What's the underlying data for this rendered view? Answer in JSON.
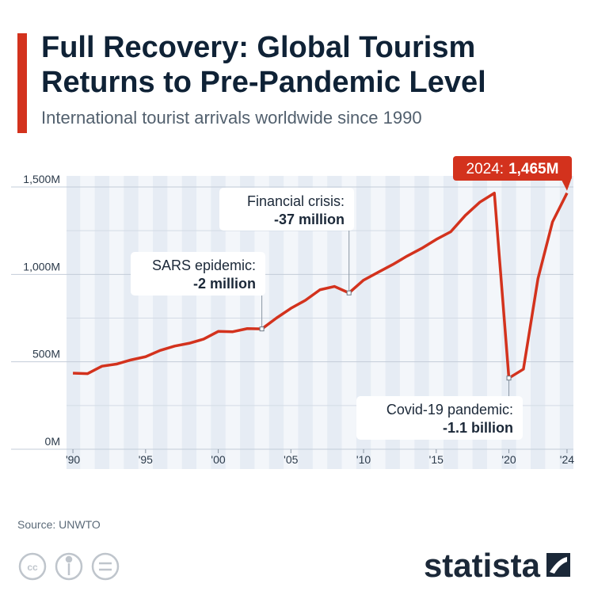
{
  "chart_data": {
    "type": "line",
    "title": "Full Recovery: Global Tourism Returns to Pre-Pandemic Level",
    "subtitle": "International tourist arrivals worldwide since 1990",
    "x": [
      1990,
      1991,
      1992,
      1993,
      1994,
      1995,
      1996,
      1997,
      1998,
      1999,
      2000,
      2001,
      2002,
      2003,
      2004,
      2005,
      2006,
      2007,
      2008,
      2009,
      2010,
      2011,
      2012,
      2013,
      2014,
      2015,
      2016,
      2017,
      2018,
      2019,
      2020,
      2021,
      2022,
      2023,
      2024
    ],
    "series": [
      {
        "name": "International tourist arrivals",
        "color": "#d3321d",
        "values": [
          435,
          432,
          475,
          487,
          511,
          529,
          565,
          590,
          606,
          630,
          674,
          672,
          690,
          688,
          750,
          806,
          852,
          912,
          931,
          894,
          967,
          1012,
          1056,
          1105,
          1149,
          1200,
          1244,
          1337,
          1413,
          1465,
          407,
          458,
          975,
          1300,
          1465
        ]
      }
    ],
    "xlim": [
      1989.56,
      2024.44
    ],
    "xticks": [
      {
        "value": 1990,
        "label": "'90"
      },
      {
        "value": 1995,
        "label": "'95"
      },
      {
        "value": 2000,
        "label": "'00"
      },
      {
        "value": 2005,
        "label": "'05"
      },
      {
        "value": 2010,
        "label": "'10"
      },
      {
        "value": 2015,
        "label": "'15"
      },
      {
        "value": 2020,
        "label": "'20"
      },
      {
        "value": 2024,
        "label": "'24"
      }
    ],
    "ylim": [
      0,
      1500
    ],
    "yticks": [
      {
        "value": 0,
        "label": "0M"
      },
      {
        "value": 500,
        "label": "500M"
      },
      {
        "value": 1000,
        "label": "1,000M"
      },
      {
        "value": 1500,
        "label": "1,500M"
      }
    ],
    "minor_yticks": [
      250,
      750,
      1250
    ],
    "grid": true,
    "annotations": [
      {
        "title": "SARS epidemic:",
        "value": "-2 million"
      },
      {
        "title": "Financial crisis:",
        "value": "-37 million"
      },
      {
        "title": "Covid-19 pandemic:",
        "value": "-1.1 billion"
      },
      {
        "title": "2024:",
        "value": "1,465M"
      }
    ],
    "source": "Source: UNWTO",
    "brand": "statista"
  }
}
